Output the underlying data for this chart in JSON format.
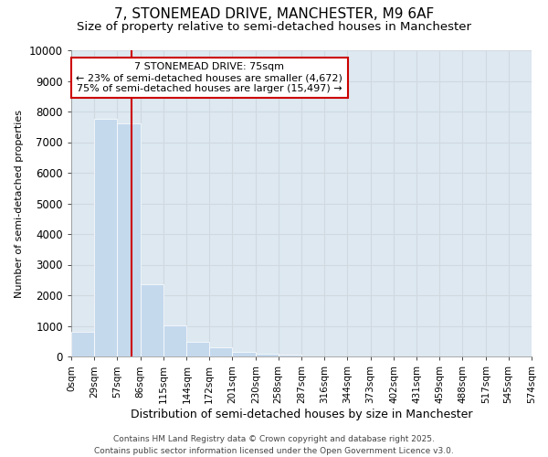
{
  "title": "7, STONEMEAD DRIVE, MANCHESTER, M9 6AF",
  "subtitle": "Size of property relative to semi-detached houses in Manchester",
  "xlabel": "Distribution of semi-detached houses by size in Manchester",
  "ylabel": "Number of semi-detached properties",
  "footer_line1": "Contains HM Land Registry data © Crown copyright and database right 2025.",
  "footer_line2": "Contains public sector information licensed under the Open Government Licence v3.0.",
  "annotation_title": "7 STONEMEAD DRIVE: 75sqm",
  "annotation_line1": "← 23% of semi-detached houses are smaller (4,672)",
  "annotation_line2": "75% of semi-detached houses are larger (15,497) →",
  "property_size": 75,
  "bar_values": [
    800,
    7750,
    7600,
    2350,
    1020,
    480,
    300,
    150,
    100,
    50,
    0,
    0,
    0,
    0,
    0,
    0,
    0,
    0,
    0,
    0
  ],
  "bin_edges": [
    0,
    29,
    57,
    86,
    115,
    144,
    172,
    201,
    230,
    258,
    287,
    316,
    344,
    373,
    402,
    431,
    459,
    488,
    517,
    545,
    574
  ],
  "xlim": [
    0,
    574
  ],
  "ylim": [
    0,
    10000
  ],
  "bar_color": "#c5d9ed",
  "grid_color": "#d0d8e0",
  "vline_color": "#cc0000",
  "annotation_box_edge": "#cc0000",
  "background_color": "#ffffff",
  "plot_bg_color": "#dde8f0",
  "title_fontsize": 11,
  "subtitle_fontsize": 9.5,
  "xlabel_fontsize": 9,
  "ylabel_fontsize": 8,
  "tick_fontsize": 7.5,
  "annotation_fontsize": 8,
  "footer_fontsize": 6.5
}
